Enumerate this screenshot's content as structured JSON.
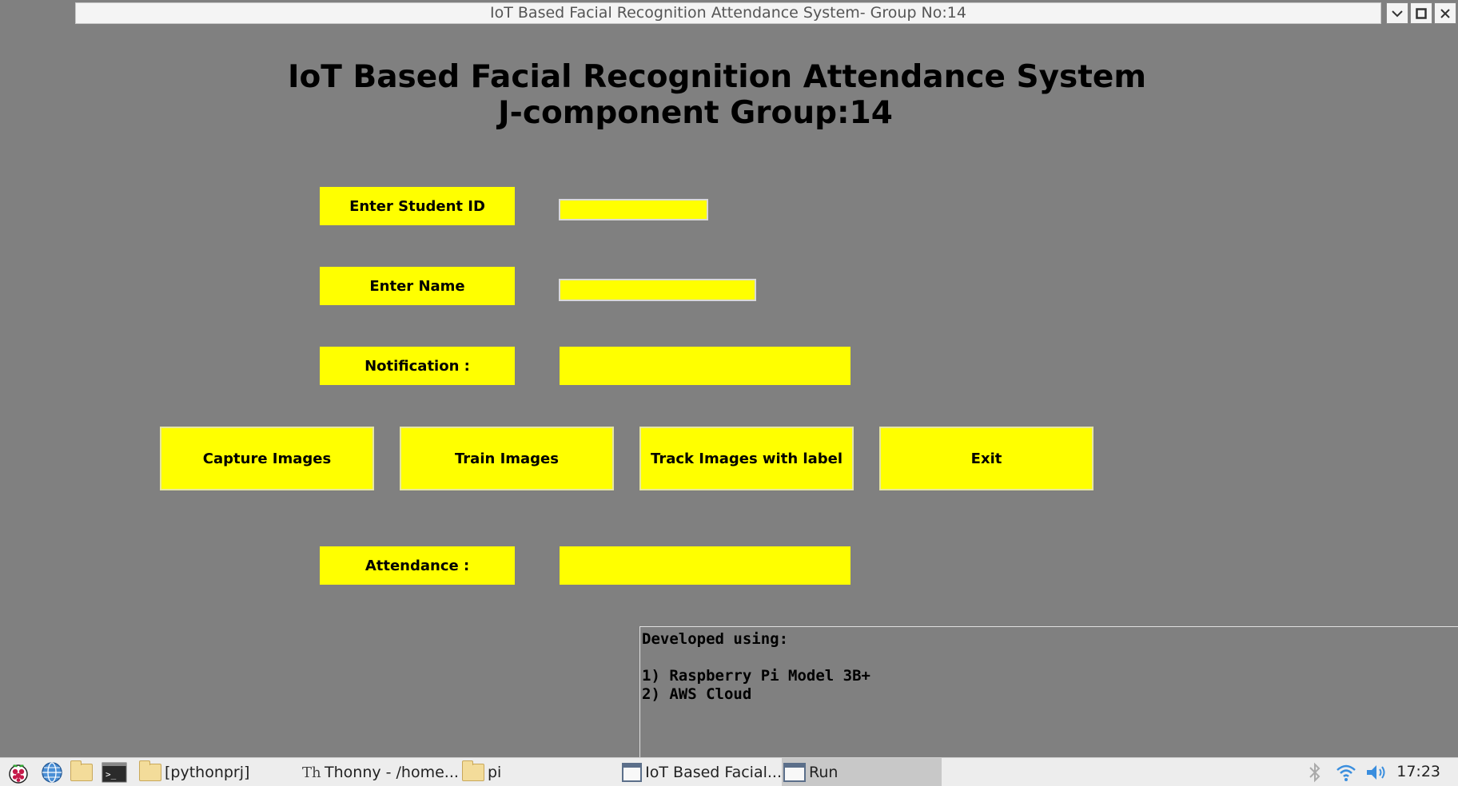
{
  "window": {
    "title": "IoT Based Facial Recognition Attendance System- Group No:14"
  },
  "app": {
    "heading_line1": "IoT Based Facial Recognition Attendance System",
    "heading_line2": "J-component Group:14",
    "student_id_label": "Enter Student ID",
    "student_id_value": "",
    "name_label": "Enter Name",
    "name_value": "",
    "notification_label": "Notification :",
    "notification_value": "",
    "attendance_label": "Attendance :",
    "attendance_value": "",
    "buttons": {
      "capture": "Capture Images",
      "train": "Train Images",
      "track": "Track Images with label",
      "exit": "Exit"
    },
    "developed": {
      "title": "Developed using:",
      "item1": "1) Raspberry Pi Model 3B+",
      "item2": "2) AWS Cloud"
    },
    "accent_color": "#ffff00",
    "background_color": "#808080"
  },
  "taskbar": {
    "items": [
      {
        "label": "[pythonprj]",
        "icon": "folder-icon"
      },
      {
        "label": "Thonny  -  /home...",
        "icon": "thonny-icon"
      },
      {
        "label": "pi",
        "icon": "folder-icon"
      },
      {
        "label": "IoT Based Facial...",
        "icon": "window-icon"
      },
      {
        "label": "Run",
        "icon": "window-icon"
      }
    ],
    "clock": "17:23"
  }
}
